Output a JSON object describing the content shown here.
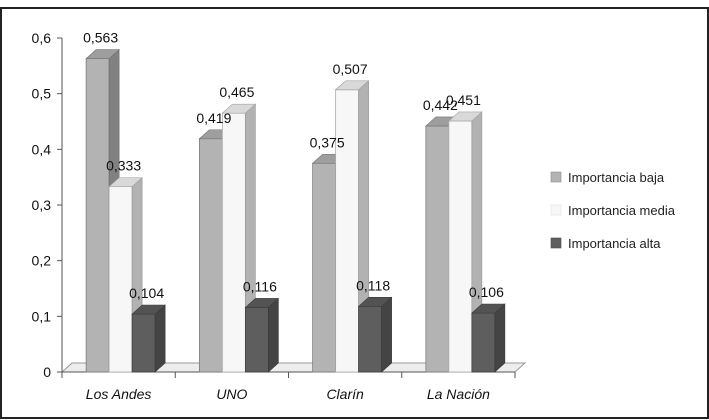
{
  "chart_data": {
    "type": "bar",
    "categories": [
      "Los Andes",
      "UNO",
      "Clarín",
      "La Nación"
    ],
    "series": [
      {
        "name": "Importancia baja",
        "values": [
          0.563,
          0.419,
          0.375,
          0.442
        ],
        "labels": [
          "0,563",
          "0,419",
          "0,375",
          "0,442"
        ],
        "color": "#b3b3b3"
      },
      {
        "name": "Importancia media",
        "values": [
          0.333,
          0.465,
          0.507,
          0.451
        ],
        "labels": [
          "0,333",
          "0,465",
          "0,507",
          "0,451"
        ],
        "color": "#f7f7f7"
      },
      {
        "name": "Importancia alta",
        "values": [
          0.104,
          0.116,
          0.118,
          0.106
        ],
        "labels": [
          "0,104",
          "0,116",
          "0,118",
          "0,106"
        ],
        "color": "#5e5e5e"
      }
    ],
    "ylim": [
      0,
      0.6
    ],
    "yticks": [
      0,
      0.1,
      0.2,
      0.3,
      0.4,
      0.5,
      0.6
    ],
    "ytick_labels": [
      "0",
      "0,1",
      "0,2",
      "0,3",
      "0,4",
      "0,5",
      "0,6"
    ],
    "legend_position": "right",
    "grid": false,
    "style": "3d-clustered-column"
  }
}
